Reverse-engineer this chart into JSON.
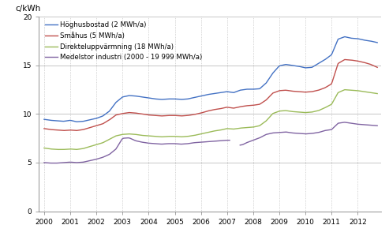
{
  "ylabel": "c/kWh",
  "ylim": [
    0,
    20
  ],
  "yticks": [
    0,
    5,
    10,
    15,
    20
  ],
  "xlim": [
    1999.8,
    2012.9
  ],
  "xticks": [
    2000,
    2001,
    2002,
    2003,
    2004,
    2005,
    2006,
    2007,
    2008,
    2009,
    2010,
    2011,
    2012
  ],
  "colors": {
    "hoghus": "#4472C4",
    "smahus": "#C0504D",
    "direkt": "#9BBB59",
    "medel": "#8064A2"
  },
  "legend": [
    "Höghusbostad (2 MWh/a)",
    "Småhus (5 MWh/a)",
    "Direkteluppvärmning (18 MWh/a)",
    "Medelstor industri (2000 - 19 999 MWh/a)"
  ],
  "background": "#FFFFFF",
  "grid_color": "#B0B0B0",
  "figsize": [
    4.93,
    3.04
  ],
  "dpi": 100
}
